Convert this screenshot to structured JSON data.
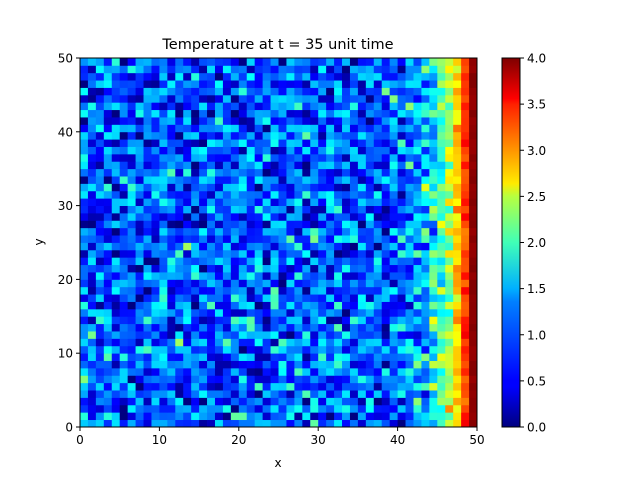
{
  "chart_data": {
    "type": "heatmap",
    "title": "Temperature at t = 35 unit time",
    "xlabel": "x",
    "ylabel": "y",
    "xlim": [
      0,
      50
    ],
    "ylim": [
      0,
      50
    ],
    "x_ticks": [
      "0",
      "10",
      "20",
      "30",
      "40",
      "50"
    ],
    "y_ticks": [
      "0",
      "10",
      "20",
      "30",
      "40",
      "50"
    ],
    "grid_size": [
      50,
      50
    ],
    "colormap": "jet",
    "color_range": [
      0.0,
      4.0
    ],
    "colorbar_ticks": [
      "0.0",
      "0.5",
      "1.0",
      "1.5",
      "2.0",
      "2.5",
      "3.0",
      "3.5",
      "4.0"
    ],
    "colorbar_position": "right",
    "field_summary": {
      "interior_mean": 0.85,
      "interior_noise": 0.45,
      "right_edge_value": 4.0,
      "gradient_start_x": 40,
      "description_of_trend": "noisy field near 1 rising steeply toward the right boundary"
    }
  }
}
